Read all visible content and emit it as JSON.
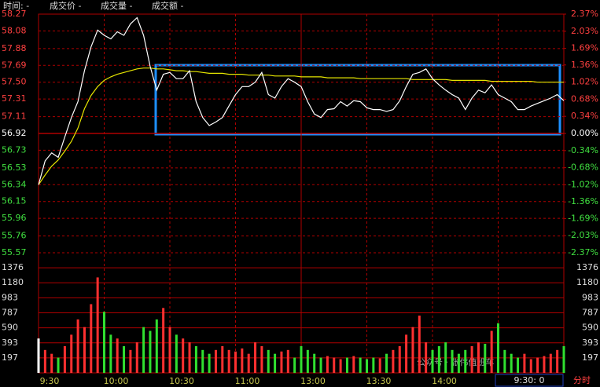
{
  "header": {
    "fields": [
      "时间: -",
      "成交价 -",
      "成交量 -",
      "成交额 -"
    ]
  },
  "status": {
    "time": "9:30: 0",
    "tab": "分时"
  },
  "watermark": "公众号 · 张伟值班车",
  "chart_data": [
    {
      "type": "line",
      "x": [
        "9:30",
        "9:33",
        "9:36",
        "9:39",
        "9:42",
        "9:45",
        "9:48",
        "9:51",
        "9:54",
        "9:57",
        "10:00",
        "10:03",
        "10:06",
        "10:09",
        "10:12",
        "10:15",
        "10:18",
        "10:21",
        "10:24",
        "10:27",
        "10:30",
        "10:33",
        "10:36",
        "10:39",
        "10:42",
        "10:45",
        "10:48",
        "10:51",
        "10:54",
        "10:57",
        "11:00",
        "11:03",
        "11:06",
        "11:09",
        "11:12",
        "11:15",
        "11:18",
        "11:21",
        "11:24",
        "11:27",
        "13:00",
        "13:03",
        "13:06",
        "13:09",
        "13:12",
        "13:15",
        "13:18",
        "13:21",
        "13:24",
        "13:27",
        "13:30",
        "13:33",
        "13:36",
        "13:39",
        "13:42",
        "13:45",
        "13:48",
        "13:51",
        "13:54",
        "13:57",
        "14:00",
        "14:03",
        "14:06",
        "14:09",
        "14:12",
        "14:15",
        "14:18",
        "14:21",
        "14:24",
        "14:27",
        "14:30",
        "14:33",
        "14:36",
        "14:39",
        "14:42",
        "14:45",
        "14:48",
        "14:51",
        "14:54",
        "14:57",
        "15:00"
      ],
      "series": [
        {
          "name": "成交价",
          "color": "#ffffff",
          "values": [
            56.34,
            56.61,
            56.7,
            56.65,
            56.88,
            57.1,
            57.28,
            57.63,
            57.9,
            58.09,
            58.03,
            57.99,
            58.07,
            58.03,
            58.16,
            58.23,
            58.03,
            57.68,
            57.41,
            57.59,
            57.61,
            57.54,
            57.54,
            57.63,
            57.28,
            57.1,
            57.01,
            57.05,
            57.1,
            57.23,
            57.36,
            57.45,
            57.45,
            57.5,
            57.61,
            57.36,
            57.32,
            57.45,
            57.54,
            57.5,
            57.45,
            57.28,
            57.14,
            57.1,
            57.19,
            57.2,
            57.28,
            57.23,
            57.29,
            57.28,
            57.21,
            57.19,
            57.19,
            57.17,
            57.19,
            57.29,
            57.45,
            57.59,
            57.61,
            57.65,
            57.54,
            57.47,
            57.41,
            57.36,
            57.32,
            57.19,
            57.32,
            57.41,
            57.38,
            57.47,
            57.36,
            57.32,
            57.28,
            57.19,
            57.19,
            57.23,
            57.26,
            57.29,
            57.32,
            57.36,
            57.29
          ]
        },
        {
          "name": "均价",
          "color": "#e6e600",
          "values": [
            56.34,
            56.45,
            56.55,
            56.62,
            56.72,
            56.83,
            56.98,
            57.2,
            57.35,
            57.45,
            57.52,
            57.56,
            57.59,
            57.61,
            57.63,
            57.65,
            57.66,
            57.66,
            57.65,
            57.65,
            57.64,
            57.63,
            57.63,
            57.62,
            57.62,
            57.61,
            57.6,
            57.6,
            57.6,
            57.59,
            57.59,
            57.59,
            57.58,
            57.58,
            57.58,
            57.58,
            57.57,
            57.57,
            57.57,
            57.57,
            57.56,
            57.56,
            57.56,
            57.56,
            57.55,
            57.55,
            57.55,
            57.55,
            57.55,
            57.54,
            57.54,
            57.54,
            57.54,
            57.54,
            57.54,
            57.54,
            57.54,
            57.53,
            57.53,
            57.53,
            57.53,
            57.53,
            57.53,
            57.52,
            57.52,
            57.52,
            57.52,
            57.52,
            57.52,
            57.51,
            57.51,
            57.51,
            57.51,
            57.51,
            57.51,
            57.51,
            57.5,
            57.5,
            57.5,
            57.5,
            57.5
          ]
        }
      ],
      "ylim": [
        55.57,
        58.27
      ],
      "yticks": [
        58.27,
        58.08,
        57.88,
        57.69,
        {
          "value": 57.5,
          "label": "57.50"
        },
        57.31,
        57.11,
        56.92,
        56.73,
        56.53,
        56.34,
        56.15,
        55.96,
        55.76,
        55.57
      ],
      "y2lim": [
        -2.37,
        2.37
      ],
      "y2ticks": [
        {
          "value": 2.37,
          "label": "2.37%"
        },
        {
          "value": 2.03,
          "label": "2.03%"
        },
        {
          "value": 1.69,
          "label": "1.69%"
        },
        {
          "value": 1.36,
          "label": "1.36%"
        },
        {
          "value": 1.02,
          "label": "1.02%"
        },
        {
          "value": 0.68,
          "label": "0.68%"
        },
        {
          "value": 0.34,
          "label": "0.34%"
        },
        {
          "value": 0,
          "label": "0.00%"
        },
        {
          "value": -0.34,
          "label": "-0.34%"
        },
        {
          "value": -0.68,
          "label": "-0.68%"
        },
        {
          "value": -1.02,
          "label": "-1.02%"
        },
        {
          "value": -1.36,
          "label": "-1.36%"
        },
        {
          "value": -1.69,
          "label": "-1.69%"
        },
        {
          "value": -2.03,
          "label": "-2.03%"
        },
        {
          "value": -2.37,
          "label": "-2.37%"
        }
      ],
      "xticks": [
        "9:30",
        "10:00",
        "10:30",
        "11:00",
        "13:00",
        "13:30",
        "14:00"
      ],
      "vgrid": [
        "10:00",
        "10:30",
        "11:00",
        "13:00",
        "13:30",
        "14:00",
        "14:30"
      ],
      "grid": true
    },
    {
      "type": "bar",
      "series": [
        {
          "name": "成交量",
          "values": [
            450,
            300,
            250,
            200,
            350,
            500,
            700,
            600,
            900,
            1250,
            800,
            500,
            450,
            350,
            300,
            400,
            600,
            550,
            700,
            850,
            600,
            500,
            450,
            400,
            350,
            300,
            250,
            300,
            350,
            300,
            280,
            320,
            250,
            400,
            350,
            300,
            250,
            280,
            300,
            200,
            350,
            300,
            250,
            200,
            220,
            200,
            180,
            200,
            220,
            200,
            180,
            200,
            190,
            250,
            300,
            350,
            500,
            600,
            750,
            400,
            300,
            350,
            400,
            300,
            250,
            300,
            350,
            400,
            380,
            550,
            650,
            300,
            250,
            200,
            250,
            180,
            200,
            220,
            250,
            300,
            350
          ]
        }
      ],
      "ylim": [
        0,
        1573
      ],
      "yticks": [
        1376,
        1180,
        983,
        787,
        590,
        393,
        197
      ],
      "grid": true
    }
  ]
}
